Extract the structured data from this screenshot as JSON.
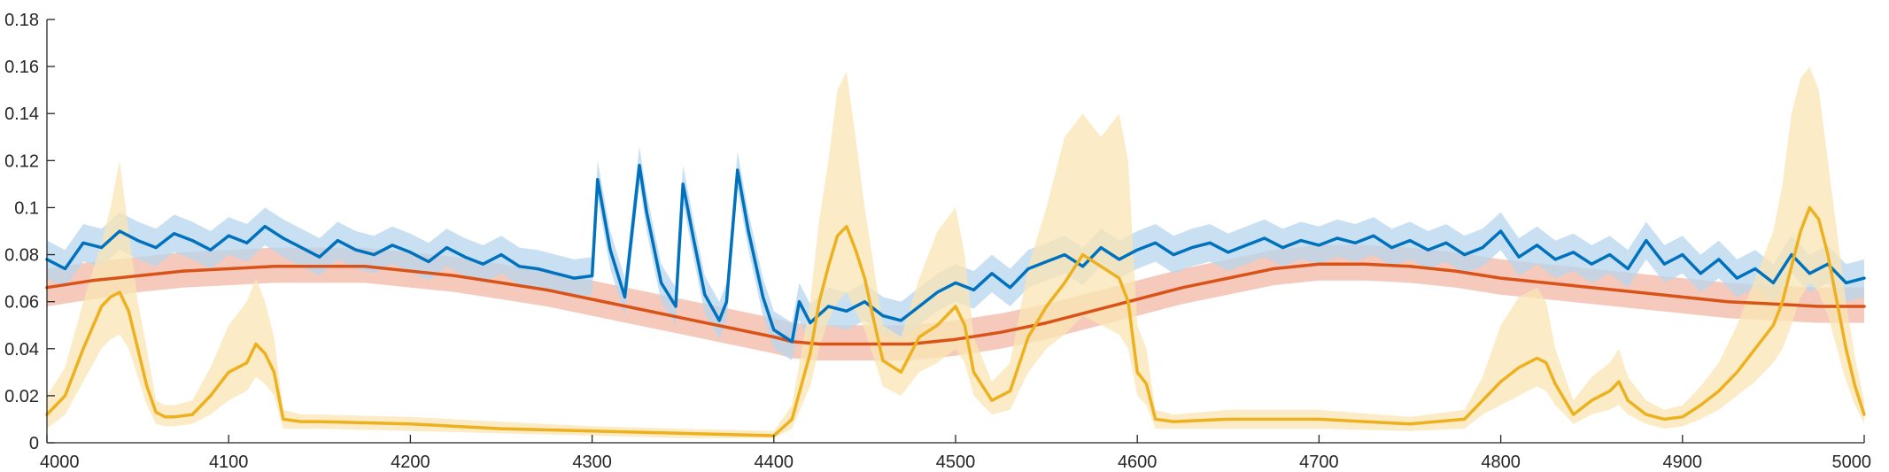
{
  "chart_data": {
    "type": "line",
    "title": "",
    "xlabel": "",
    "ylabel": "",
    "xlim": [
      4000,
      5000
    ],
    "ylim": [
      0,
      0.18
    ],
    "grid": false,
    "legend": "none",
    "x_ticks": [
      4000,
      4100,
      4200,
      4300,
      4400,
      4500,
      4600,
      4700,
      4800,
      4900,
      5000
    ],
    "x_tick_labels": [
      "4000",
      "4100",
      "4200",
      "4300",
      "4400",
      "4500",
      "4600",
      "4700",
      "4800",
      "4900",
      "5000"
    ],
    "y_ticks": [
      0,
      0.02,
      0.04,
      0.06,
      0.08,
      0.1,
      0.12,
      0.14,
      0.16,
      0.18
    ],
    "y_tick_labels": [
      "0",
      "0.02",
      "0.04",
      "0.06",
      "0.08",
      "0.1",
      "0.12",
      "0.14",
      "0.16",
      "0.18"
    ],
    "series": [
      {
        "color": "#D95319",
        "band_color": "#F2B8A6",
        "x": [
          4000,
          4025,
          4050,
          4075,
          4100,
          4125,
          4150,
          4175,
          4200,
          4225,
          4250,
          4275,
          4300,
          4325,
          4350,
          4375,
          4400,
          4410,
          4425,
          4450,
          4475,
          4500,
          4525,
          4550,
          4575,
          4600,
          4625,
          4650,
          4675,
          4700,
          4725,
          4750,
          4775,
          4800,
          4825,
          4850,
          4875,
          4900,
          4925,
          4950,
          4975,
          5000
        ],
        "values": [
          0.066,
          0.069,
          0.071,
          0.073,
          0.074,
          0.075,
          0.075,
          0.075,
          0.073,
          0.071,
          0.068,
          0.065,
          0.061,
          0.057,
          0.053,
          0.049,
          0.045,
          0.043,
          0.042,
          0.042,
          0.042,
          0.044,
          0.047,
          0.051,
          0.056,
          0.061,
          0.066,
          0.07,
          0.074,
          0.076,
          0.076,
          0.075,
          0.073,
          0.07,
          0.068,
          0.066,
          0.064,
          0.062,
          0.06,
          0.059,
          0.058,
          0.058
        ],
        "band_lower": [
          0.058,
          0.061,
          0.064,
          0.066,
          0.067,
          0.068,
          0.068,
          0.068,
          0.066,
          0.064,
          0.061,
          0.058,
          0.054,
          0.05,
          0.046,
          0.042,
          0.038,
          0.036,
          0.035,
          0.035,
          0.035,
          0.037,
          0.04,
          0.044,
          0.049,
          0.054,
          0.059,
          0.063,
          0.067,
          0.069,
          0.069,
          0.068,
          0.066,
          0.063,
          0.061,
          0.059,
          0.057,
          0.055,
          0.053,
          0.052,
          0.051,
          0.051
        ],
        "band_upper": [
          0.074,
          0.077,
          0.079,
          0.081,
          0.082,
          0.083,
          0.083,
          0.083,
          0.081,
          0.079,
          0.076,
          0.073,
          0.069,
          0.065,
          0.061,
          0.057,
          0.053,
          0.051,
          0.05,
          0.05,
          0.05,
          0.052,
          0.055,
          0.059,
          0.064,
          0.069,
          0.074,
          0.078,
          0.082,
          0.084,
          0.084,
          0.083,
          0.081,
          0.078,
          0.076,
          0.074,
          0.072,
          0.07,
          0.068,
          0.067,
          0.066,
          0.066
        ]
      },
      {
        "color": "#0072BD",
        "band_color": "#B7D6EE",
        "x": [
          4000,
          4010,
          4020,
          4030,
          4040,
          4050,
          4060,
          4070,
          4080,
          4090,
          4100,
          4110,
          4120,
          4130,
          4140,
          4150,
          4160,
          4170,
          4180,
          4190,
          4200,
          4210,
          4220,
          4230,
          4240,
          4250,
          4260,
          4270,
          4280,
          4290,
          4300,
          4303,
          4310,
          4318,
          4326,
          4330,
          4338,
          4346,
          4350,
          4356,
          4362,
          4370,
          4374,
          4380,
          4386,
          4394,
          4400,
          4410,
          4414,
          4420,
          4430,
          4440,
          4450,
          4460,
          4470,
          4480,
          4490,
          4500,
          4510,
          4520,
          4530,
          4540,
          4550,
          4560,
          4570,
          4580,
          4590,
          4600,
          4610,
          4620,
          4630,
          4640,
          4650,
          4660,
          4670,
          4680,
          4690,
          4700,
          4710,
          4720,
          4730,
          4740,
          4750,
          4760,
          4770,
          4780,
          4790,
          4800,
          4810,
          4820,
          4830,
          4840,
          4850,
          4860,
          4870,
          4880,
          4890,
          4900,
          4910,
          4920,
          4930,
          4940,
          4950,
          4960,
          4970,
          4980,
          4990,
          5000
        ],
        "values": [
          0.078,
          0.074,
          0.085,
          0.083,
          0.09,
          0.086,
          0.083,
          0.089,
          0.086,
          0.082,
          0.088,
          0.085,
          0.092,
          0.087,
          0.083,
          0.079,
          0.086,
          0.082,
          0.08,
          0.084,
          0.081,
          0.077,
          0.083,
          0.079,
          0.076,
          0.08,
          0.075,
          0.074,
          0.072,
          0.07,
          0.071,
          0.112,
          0.082,
          0.062,
          0.118,
          0.098,
          0.068,
          0.058,
          0.11,
          0.086,
          0.063,
          0.052,
          0.06,
          0.116,
          0.09,
          0.062,
          0.048,
          0.043,
          0.06,
          0.051,
          0.058,
          0.056,
          0.06,
          0.054,
          0.052,
          0.058,
          0.064,
          0.068,
          0.065,
          0.072,
          0.066,
          0.074,
          0.077,
          0.08,
          0.075,
          0.083,
          0.078,
          0.082,
          0.085,
          0.08,
          0.083,
          0.085,
          0.081,
          0.084,
          0.087,
          0.083,
          0.086,
          0.084,
          0.087,
          0.085,
          0.088,
          0.083,
          0.086,
          0.082,
          0.085,
          0.08,
          0.083,
          0.09,
          0.079,
          0.084,
          0.078,
          0.081,
          0.076,
          0.08,
          0.074,
          0.086,
          0.076,
          0.08,
          0.072,
          0.078,
          0.07,
          0.074,
          0.068,
          0.08,
          0.072,
          0.076,
          0.068,
          0.07
        ],
        "band_lower": [
          0.07,
          0.066,
          0.077,
          0.075,
          0.082,
          0.078,
          0.075,
          0.081,
          0.078,
          0.074,
          0.08,
          0.077,
          0.084,
          0.079,
          0.075,
          0.071,
          0.078,
          0.074,
          0.072,
          0.076,
          0.073,
          0.069,
          0.075,
          0.071,
          0.068,
          0.072,
          0.067,
          0.066,
          0.064,
          0.062,
          0.063,
          0.104,
          0.074,
          0.054,
          0.11,
          0.09,
          0.06,
          0.05,
          0.102,
          0.078,
          0.055,
          0.044,
          0.052,
          0.108,
          0.082,
          0.054,
          0.04,
          0.035,
          0.052,
          0.043,
          0.05,
          0.048,
          0.052,
          0.046,
          0.044,
          0.05,
          0.056,
          0.06,
          0.057,
          0.064,
          0.058,
          0.066,
          0.069,
          0.072,
          0.067,
          0.075,
          0.07,
          0.074,
          0.077,
          0.072,
          0.075,
          0.077,
          0.073,
          0.076,
          0.079,
          0.075,
          0.078,
          0.076,
          0.079,
          0.077,
          0.08,
          0.075,
          0.078,
          0.074,
          0.077,
          0.072,
          0.075,
          0.082,
          0.071,
          0.076,
          0.07,
          0.073,
          0.068,
          0.072,
          0.066,
          0.078,
          0.068,
          0.072,
          0.064,
          0.07,
          0.062,
          0.066,
          0.06,
          0.072,
          0.064,
          0.068,
          0.06,
          0.062
        ],
        "band_upper": [
          0.086,
          0.082,
          0.093,
          0.091,
          0.098,
          0.094,
          0.091,
          0.097,
          0.094,
          0.09,
          0.096,
          0.093,
          0.1,
          0.095,
          0.091,
          0.087,
          0.094,
          0.09,
          0.088,
          0.092,
          0.089,
          0.085,
          0.091,
          0.087,
          0.084,
          0.088,
          0.083,
          0.082,
          0.08,
          0.078,
          0.079,
          0.12,
          0.09,
          0.07,
          0.126,
          0.106,
          0.076,
          0.066,
          0.118,
          0.094,
          0.071,
          0.06,
          0.068,
          0.124,
          0.098,
          0.07,
          0.056,
          0.051,
          0.068,
          0.059,
          0.066,
          0.064,
          0.068,
          0.062,
          0.06,
          0.066,
          0.072,
          0.076,
          0.073,
          0.08,
          0.074,
          0.082,
          0.085,
          0.088,
          0.083,
          0.091,
          0.086,
          0.09,
          0.093,
          0.088,
          0.091,
          0.093,
          0.089,
          0.092,
          0.095,
          0.091,
          0.094,
          0.092,
          0.095,
          0.093,
          0.096,
          0.091,
          0.094,
          0.09,
          0.093,
          0.088,
          0.091,
          0.098,
          0.087,
          0.092,
          0.086,
          0.089,
          0.084,
          0.088,
          0.082,
          0.094,
          0.084,
          0.088,
          0.08,
          0.086,
          0.078,
          0.082,
          0.076,
          0.088,
          0.08,
          0.084,
          0.076,
          0.078
        ]
      },
      {
        "color": "#EDB120",
        "band_color": "#F9E6B4",
        "x": [
          4000,
          4010,
          4020,
          4030,
          4035,
          4040,
          4045,
          4050,
          4055,
          4060,
          4065,
          4070,
          4080,
          4090,
          4100,
          4110,
          4115,
          4120,
          4125,
          4130,
          4140,
          4150,
          4200,
          4250,
          4300,
          4350,
          4400,
          4410,
          4420,
          4425,
          4430,
          4435,
          4440,
          4445,
          4450,
          4455,
          4460,
          4470,
          4480,
          4490,
          4500,
          4505,
          4510,
          4520,
          4530,
          4540,
          4550,
          4560,
          4570,
          4580,
          4590,
          4595,
          4600,
          4605,
          4610,
          4620,
          4650,
          4700,
          4750,
          4780,
          4790,
          4800,
          4810,
          4820,
          4825,
          4830,
          4840,
          4850,
          4860,
          4865,
          4870,
          4880,
          4890,
          4900,
          4910,
          4920,
          4930,
          4940,
          4950,
          4955,
          4960,
          4965,
          4970,
          4975,
          4980,
          4985,
          4990,
          4995,
          5000
        ],
        "values": [
          0.012,
          0.02,
          0.04,
          0.058,
          0.062,
          0.064,
          0.056,
          0.04,
          0.024,
          0.013,
          0.011,
          0.011,
          0.012,
          0.02,
          0.03,
          0.034,
          0.042,
          0.038,
          0.03,
          0.01,
          0.009,
          0.009,
          0.008,
          0.006,
          0.005,
          0.004,
          0.003,
          0.01,
          0.038,
          0.06,
          0.075,
          0.088,
          0.092,
          0.082,
          0.07,
          0.052,
          0.035,
          0.03,
          0.045,
          0.05,
          0.058,
          0.05,
          0.03,
          0.018,
          0.022,
          0.045,
          0.058,
          0.068,
          0.08,
          0.075,
          0.07,
          0.06,
          0.03,
          0.025,
          0.01,
          0.009,
          0.01,
          0.01,
          0.008,
          0.01,
          0.018,
          0.026,
          0.032,
          0.036,
          0.034,
          0.025,
          0.012,
          0.018,
          0.022,
          0.026,
          0.018,
          0.012,
          0.01,
          0.011,
          0.016,
          0.022,
          0.03,
          0.04,
          0.05,
          0.06,
          0.075,
          0.09,
          0.1,
          0.095,
          0.08,
          0.06,
          0.04,
          0.024,
          0.012
        ],
        "band_lower": [
          0.006,
          0.012,
          0.026,
          0.04,
          0.044,
          0.046,
          0.04,
          0.028,
          0.016,
          0.008,
          0.007,
          0.007,
          0.008,
          0.012,
          0.018,
          0.022,
          0.028,
          0.025,
          0.02,
          0.006,
          0.006,
          0.006,
          0.005,
          0.004,
          0.003,
          0.002,
          0.002,
          0.006,
          0.024,
          0.04,
          0.052,
          0.06,
          0.064,
          0.056,
          0.048,
          0.036,
          0.024,
          0.02,
          0.03,
          0.034,
          0.04,
          0.034,
          0.02,
          0.012,
          0.014,
          0.03,
          0.04,
          0.046,
          0.054,
          0.05,
          0.046,
          0.04,
          0.02,
          0.016,
          0.006,
          0.006,
          0.006,
          0.006,
          0.005,
          0.006,
          0.012,
          0.016,
          0.02,
          0.024,
          0.022,
          0.016,
          0.008,
          0.012,
          0.014,
          0.016,
          0.012,
          0.008,
          0.006,
          0.007,
          0.01,
          0.014,
          0.02,
          0.026,
          0.034,
          0.04,
          0.05,
          0.062,
          0.068,
          0.064,
          0.054,
          0.04,
          0.026,
          0.016,
          0.008
        ],
        "band_upper": [
          0.02,
          0.032,
          0.06,
          0.085,
          0.1,
          0.12,
          0.09,
          0.06,
          0.04,
          0.018,
          0.016,
          0.016,
          0.018,
          0.032,
          0.05,
          0.06,
          0.07,
          0.06,
          0.045,
          0.014,
          0.012,
          0.012,
          0.011,
          0.009,
          0.007,
          0.006,
          0.005,
          0.016,
          0.06,
          0.095,
          0.12,
          0.15,
          0.158,
          0.13,
          0.1,
          0.075,
          0.05,
          0.045,
          0.07,
          0.09,
          0.1,
          0.08,
          0.045,
          0.026,
          0.034,
          0.075,
          0.1,
          0.13,
          0.14,
          0.13,
          0.14,
          0.12,
          0.05,
          0.04,
          0.014,
          0.012,
          0.014,
          0.014,
          0.011,
          0.014,
          0.028,
          0.05,
          0.062,
          0.066,
          0.06,
          0.04,
          0.018,
          0.028,
          0.034,
          0.04,
          0.028,
          0.018,
          0.014,
          0.016,
          0.024,
          0.034,
          0.05,
          0.07,
          0.09,
          0.11,
          0.14,
          0.155,
          0.16,
          0.15,
          0.12,
          0.09,
          0.06,
          0.036,
          0.018
        ]
      }
    ]
  }
}
